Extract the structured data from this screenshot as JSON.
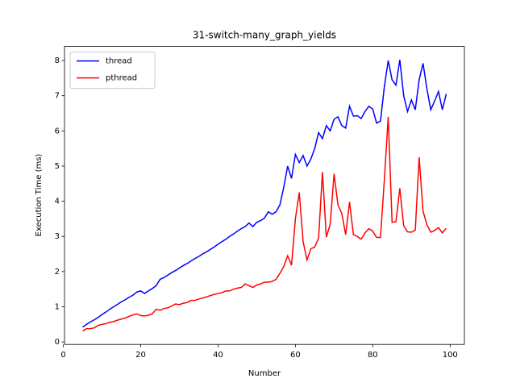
{
  "chart_data": {
    "type": "line",
    "title": "31-switch-many_graph_yields",
    "xlabel": "Number",
    "ylabel": "Execution Time (ms)",
    "x": [
      5,
      6,
      7,
      8,
      9,
      10,
      11,
      12,
      13,
      14,
      15,
      16,
      17,
      18,
      19,
      20,
      21,
      22,
      23,
      24,
      25,
      26,
      27,
      28,
      29,
      30,
      31,
      32,
      33,
      34,
      35,
      36,
      37,
      38,
      39,
      40,
      41,
      42,
      43,
      44,
      45,
      46,
      47,
      48,
      49,
      50,
      51,
      52,
      53,
      54,
      55,
      56,
      57,
      58,
      59,
      60,
      61,
      62,
      63,
      64,
      65,
      66,
      67,
      68,
      69,
      70,
      71,
      72,
      73,
      74,
      75,
      76,
      77,
      78,
      79,
      80,
      81,
      82,
      83,
      84,
      85,
      86,
      87,
      88,
      89,
      90,
      91,
      92,
      93,
      94,
      95,
      96,
      97,
      98,
      99
    ],
    "series": [
      {
        "name": "thread",
        "color": "#0000ff",
        "values": [
          0.42,
          0.5,
          0.57,
          0.63,
          0.7,
          0.78,
          0.85,
          0.93,
          1.0,
          1.07,
          1.14,
          1.2,
          1.27,
          1.33,
          1.42,
          1.45,
          1.38,
          1.45,
          1.52,
          1.6,
          1.78,
          1.83,
          1.9,
          1.97,
          2.03,
          2.1,
          2.17,
          2.23,
          2.3,
          2.37,
          2.43,
          2.5,
          2.56,
          2.63,
          2.7,
          2.78,
          2.85,
          2.92,
          3.0,
          3.07,
          3.15,
          3.22,
          3.28,
          3.38,
          3.28,
          3.4,
          3.45,
          3.52,
          3.7,
          3.63,
          3.7,
          3.9,
          4.4,
          5.0,
          4.65,
          5.33,
          5.1,
          5.3,
          5.0,
          5.2,
          5.5,
          5.95,
          5.78,
          6.15,
          6.0,
          6.33,
          6.4,
          6.15,
          6.08,
          6.7,
          6.42,
          6.43,
          6.35,
          6.55,
          6.7,
          6.62,
          6.22,
          6.28,
          7.25,
          8.0,
          7.45,
          7.3,
          8.02,
          7.0,
          6.55,
          6.88,
          6.6,
          7.45,
          7.92,
          7.2,
          6.6,
          6.85,
          7.12,
          6.6,
          7.05
        ]
      },
      {
        "name": "pthread",
        "color": "#ff0000",
        "values": [
          0.31,
          0.38,
          0.38,
          0.4,
          0.47,
          0.5,
          0.52,
          0.56,
          0.58,
          0.62,
          0.65,
          0.68,
          0.73,
          0.77,
          0.8,
          0.75,
          0.74,
          0.76,
          0.8,
          0.93,
          0.9,
          0.95,
          0.97,
          1.02,
          1.08,
          1.06,
          1.1,
          1.12,
          1.18,
          1.18,
          1.22,
          1.25,
          1.28,
          1.32,
          1.35,
          1.38,
          1.4,
          1.45,
          1.45,
          1.5,
          1.53,
          1.55,
          1.65,
          1.6,
          1.55,
          1.62,
          1.65,
          1.7,
          1.7,
          1.72,
          1.78,
          1.95,
          2.15,
          2.45,
          2.18,
          3.5,
          4.25,
          2.85,
          2.33,
          2.65,
          2.7,
          2.95,
          4.83,
          2.98,
          3.35,
          4.78,
          3.9,
          3.65,
          3.05,
          3.98,
          3.05,
          3.0,
          2.92,
          3.1,
          3.22,
          3.15,
          2.97,
          2.97,
          4.6,
          6.4,
          3.4,
          3.42,
          4.37,
          3.3,
          3.13,
          3.12,
          3.18,
          5.25,
          3.72,
          3.33,
          3.12,
          3.17,
          3.25,
          3.1,
          3.23
        ]
      }
    ],
    "xlim": [
      0.3,
      103.7
    ],
    "xticks": [
      0,
      20,
      40,
      60,
      80,
      100
    ],
    "ylim": [
      -0.07,
      8.4
    ],
    "yticks": [
      0,
      1,
      2,
      3,
      4,
      5,
      6,
      7,
      8
    ],
    "legend": "upper left"
  }
}
